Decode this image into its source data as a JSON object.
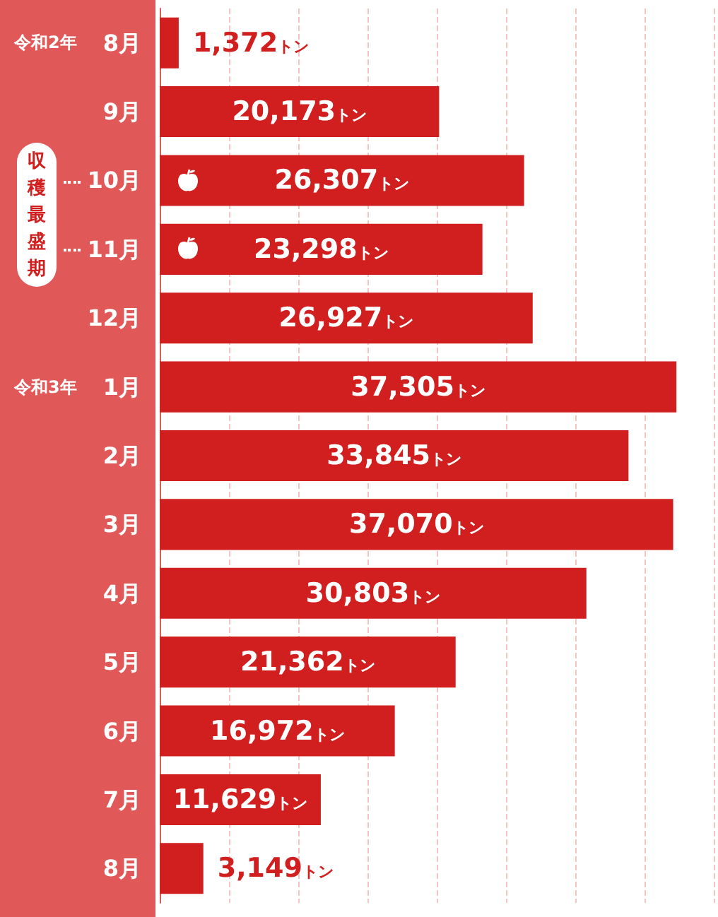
{
  "chart_data": {
    "type": "bar",
    "orientation": "horizontal",
    "categories": [
      "8月",
      "9月",
      "10月",
      "11月",
      "12月",
      "1月",
      "2月",
      "3月",
      "4月",
      "5月",
      "6月",
      "7月",
      "8月"
    ],
    "values": [
      1372,
      20173,
      26307,
      23298,
      26927,
      37305,
      33845,
      37070,
      30803,
      21362,
      16972,
      11629,
      3149
    ],
    "value_labels": [
      "1,372トン",
      "20,173トン",
      "26,307トン",
      "23,298トン",
      "26,927トン",
      "37,305トン",
      "33,845トン",
      "37,070トン",
      "30,803トン",
      "21,362トン",
      "16,972トン",
      "11,629トン",
      "3,149トン"
    ],
    "color": "#d11f1f",
    "xlim": [
      0,
      40000
    ],
    "xticks": [
      {
        "value": 0,
        "label": null
      },
      {
        "value": 5000,
        "label": null
      },
      {
        "value": 10000,
        "label": null
      },
      {
        "value": 15000,
        "label": null
      },
      {
        "value": 20000,
        "label": null
      },
      {
        "value": 25000,
        "label": null
      },
      {
        "value": 30000,
        "label": null
      },
      {
        "value": 35000,
        "label": null
      },
      {
        "value": 40000,
        "label": null
      }
    ],
    "grid": "x",
    "tick_labels": "y",
    "annotations": [
      "令和2年",
      "令和3年",
      "収穫最盛期"
    ]
  }
}
